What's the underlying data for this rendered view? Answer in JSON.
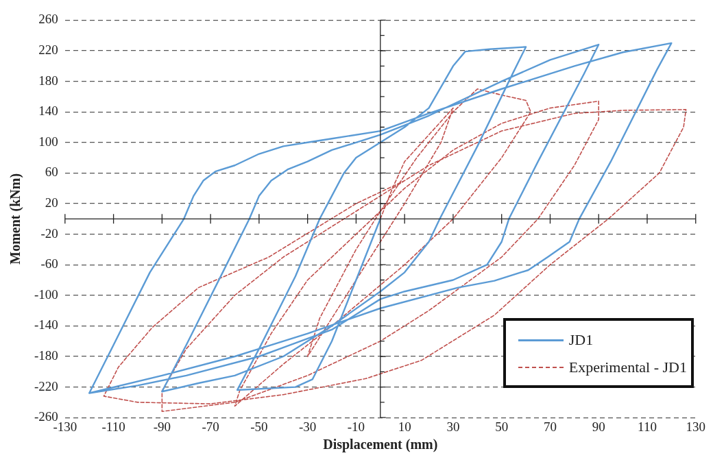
{
  "chart_data": {
    "type": "line",
    "xlabel": "Displacement (mm)",
    "ylabel": "Moment (kNm)",
    "xlim": [
      -130,
      130
    ],
    "xticks": [
      -130,
      -110,
      -90,
      -70,
      -50,
      -30,
      -10,
      10,
      30,
      50,
      70,
      90,
      110,
      130
    ],
    "ylim": [
      -260,
      260
    ],
    "yticks": [
      -260,
      -220,
      -180,
      -140,
      -100,
      -60,
      -20,
      20,
      60,
      100,
      140,
      180,
      220,
      260
    ],
    "grid": "y",
    "legend": "bottom right",
    "marker": "none",
    "series": [
      {
        "name": "JD1",
        "color": "#5b9bd5",
        "line_style": "solid",
        "x": [
          0,
          -10,
          -20,
          -28,
          -35,
          -59,
          -50,
          -35,
          -25,
          -20,
          -15,
          -10,
          0,
          10,
          20,
          30,
          35,
          45,
          60,
          55,
          40,
          24.5,
          20,
          10,
          0,
          -20,
          -40,
          -60,
          -75,
          -90,
          -80,
          -65,
          -54,
          -50,
          -45,
          -38,
          -30,
          -20,
          0,
          20,
          50,
          70,
          90,
          84,
          65,
          53,
          50,
          44,
          30,
          10,
          0,
          -20,
          -50,
          -80,
          -100,
          -120,
          -110,
          -95,
          -81,
          -77,
          -73,
          -68,
          -60,
          -50,
          -40,
          -30,
          -20,
          0,
          20,
          50,
          80,
          100,
          120,
          114,
          95,
          82,
          78,
          69,
          61,
          47,
          32,
          0,
          -30,
          -60,
          -90,
          -120
        ],
        "values": [
          0,
          -80,
          -160,
          -210,
          -220,
          -224,
          -170,
          -75,
          0,
          30,
          60,
          80,
          100,
          120,
          145,
          200,
          219,
          222,
          225,
          193,
          95,
          0,
          -30,
          -70,
          -95,
          -140,
          -180,
          -205,
          -215,
          -226,
          -165,
          -70,
          0,
          30,
          50,
          65,
          75,
          90,
          110,
          135,
          180,
          208,
          228,
          190,
          75,
          0,
          -30,
          -60,
          -80,
          -95,
          -105,
          -145,
          -180,
          -205,
          -218,
          -228,
          -165,
          -70,
          0,
          30,
          50,
          62,
          70,
          85,
          95,
          100,
          105,
          115,
          138,
          170,
          200,
          218,
          230,
          195,
          75,
          0,
          -30,
          -50,
          -67,
          -81,
          -90,
          -117,
          -150,
          -180,
          -205,
          -228
        ]
      },
      {
        "name": "Experimental - JD1",
        "color": "#c0504d",
        "line_style": "dashed",
        "x": [
          0,
          5,
          10,
          20,
          30,
          25,
          10,
          0,
          -10,
          -20,
          -30,
          -25,
          -10,
          0,
          15,
          30,
          40,
          50,
          60,
          62,
          50,
          30,
          10,
          -20,
          -40,
          -60,
          -58,
          -45,
          -30,
          -10,
          10,
          30,
          50,
          70,
          90,
          90,
          80,
          65,
          50,
          20,
          0,
          -30,
          -60,
          -90,
          -90,
          -80,
          -60,
          -40,
          -20,
          0,
          20,
          50,
          80,
          100,
          126,
          125,
          115,
          94,
          70,
          47,
          17,
          -6,
          -40,
          -70,
          -100,
          -114,
          -108,
          -94,
          -75,
          -46,
          -10,
          10
        ],
        "values": [
          0,
          40,
          75,
          110,
          145,
          100,
          20,
          -30,
          -80,
          -130,
          -180,
          -130,
          -40,
          10,
          80,
          140,
          170,
          162,
          155,
          140,
          80,
          0,
          -60,
          -140,
          -190,
          -245,
          -225,
          -150,
          -80,
          -20,
          40,
          90,
          125,
          145,
          154,
          130,
          70,
          0,
          -50,
          -120,
          -160,
          -205,
          -240,
          -252,
          -225,
          -170,
          -100,
          -50,
          -10,
          30,
          70,
          115,
          138,
          142,
          143,
          120,
          60,
          0,
          -60,
          -126,
          -185,
          -209,
          -230,
          -242,
          -240,
          -232,
          -194,
          -142,
          -90,
          -50,
          20,
          50
        ]
      }
    ]
  }
}
